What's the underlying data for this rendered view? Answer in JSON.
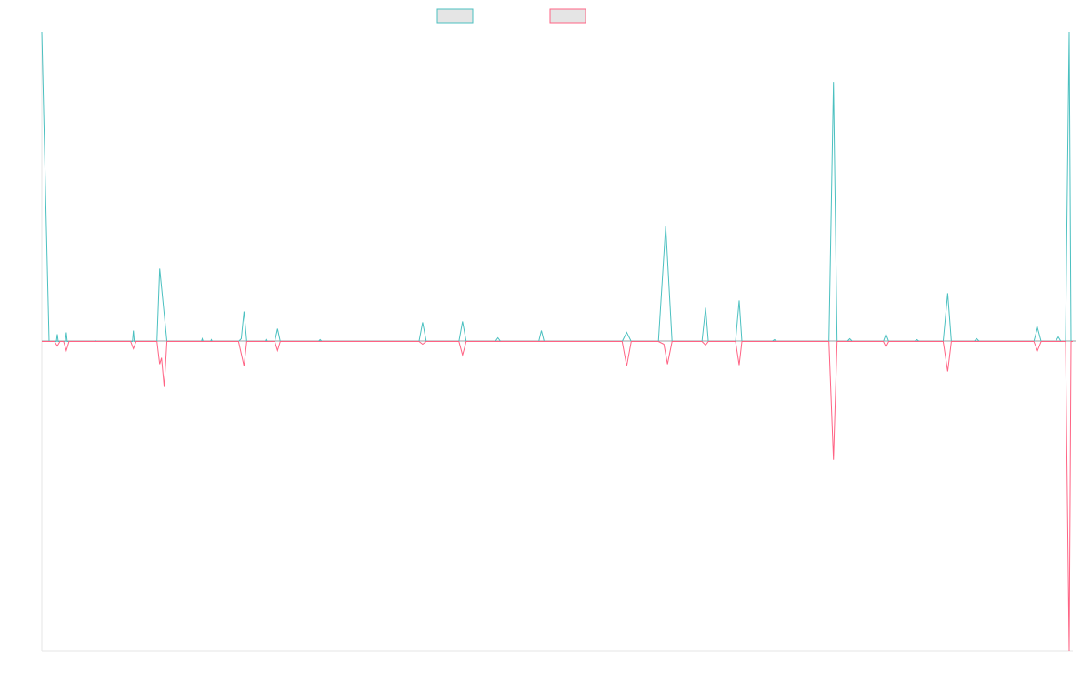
{
  "chart_data": {
    "type": "line",
    "title": "",
    "xlabel": "",
    "ylabel": "",
    "ylim": [
      -340,
      340
    ],
    "grid": false,
    "legend_position": "top-center",
    "series": [
      {
        "name": "",
        "color": "#4bc0c0",
        "fill": "#e5e5e5",
        "points": [
          [
            0,
            340
          ],
          [
            5,
            125
          ],
          [
            8,
            0
          ],
          [
            16,
            0
          ],
          [
            17,
            8
          ],
          [
            18,
            0
          ],
          [
            26,
            0
          ],
          [
            27,
            10
          ],
          [
            28,
            0
          ],
          [
            58,
            0
          ],
          [
            59,
            1
          ],
          [
            60,
            0
          ],
          [
            100,
            0
          ],
          [
            101,
            12
          ],
          [
            102,
            0
          ],
          [
            127,
            0
          ],
          [
            130,
            80
          ],
          [
            138,
            0
          ],
          [
            176,
            0
          ],
          [
            177,
            3
          ],
          [
            178,
            0
          ],
          [
            186,
            0
          ],
          [
            187,
            2
          ],
          [
            188,
            0
          ],
          [
            217,
            0
          ],
          [
            220,
            3
          ],
          [
            223,
            33
          ],
          [
            226,
            0
          ],
          [
            247,
            0
          ],
          [
            248,
            2
          ],
          [
            249,
            0
          ],
          [
            257,
            0
          ],
          [
            260,
            14
          ],
          [
            263,
            0
          ],
          [
            305,
            0
          ],
          [
            307,
            2
          ],
          [
            309,
            0
          ],
          [
            416,
            0
          ],
          [
            420,
            21
          ],
          [
            424,
            0
          ],
          [
            460,
            0
          ],
          [
            464,
            22
          ],
          [
            468,
            0
          ],
          [
            500,
            0
          ],
          [
            503,
            4
          ],
          [
            506,
            0
          ],
          [
            548,
            0
          ],
          [
            551,
            12
          ],
          [
            554,
            0
          ],
          [
            640,
            0
          ],
          [
            645,
            10
          ],
          [
            650,
            0
          ],
          [
            680,
            0
          ],
          [
            688,
            127
          ],
          [
            695,
            0
          ],
          [
            728,
            0
          ],
          [
            732,
            37
          ],
          [
            735,
            0
          ],
          [
            765,
            0
          ],
          [
            769,
            45
          ],
          [
            772,
            0
          ],
          [
            805,
            0
          ],
          [
            808,
            2
          ],
          [
            811,
            0
          ],
          [
            868,
            0
          ],
          [
            873,
            285
          ],
          [
            877,
            0
          ],
          [
            888,
            0
          ],
          [
            891,
            3
          ],
          [
            894,
            0
          ],
          [
            928,
            0
          ],
          [
            931,
            8
          ],
          [
            934,
            0
          ],
          [
            962,
            0
          ],
          [
            965,
            2
          ],
          [
            968,
            0
          ],
          [
            994,
            0
          ],
          [
            999,
            53
          ],
          [
            1003,
            0
          ],
          [
            1028,
            0
          ],
          [
            1031,
            3
          ],
          [
            1034,
            0
          ],
          [
            1094,
            0
          ],
          [
            1098,
            15
          ],
          [
            1102,
            0
          ],
          [
            1118,
            0
          ],
          [
            1121,
            5
          ],
          [
            1124,
            0
          ],
          [
            1129,
            0
          ],
          [
            1133,
            340
          ],
          [
            1135,
            0
          ],
          [
            1137,
            0
          ]
        ]
      },
      {
        "name": "",
        "color": "#ff6384",
        "fill": "#e5e5e5",
        "points": [
          [
            0,
            0
          ],
          [
            8,
            0
          ],
          [
            14,
            0
          ],
          [
            17,
            -5
          ],
          [
            20,
            0
          ],
          [
            24,
            0
          ],
          [
            27,
            -10
          ],
          [
            30,
            0
          ],
          [
            98,
            0
          ],
          [
            101,
            -8
          ],
          [
            104,
            0
          ],
          [
            127,
            0
          ],
          [
            130,
            -25
          ],
          [
            132,
            -18
          ],
          [
            135,
            -50
          ],
          [
            138,
            0
          ],
          [
            217,
            0
          ],
          [
            223,
            -27
          ],
          [
            226,
            0
          ],
          [
            257,
            0
          ],
          [
            260,
            -10
          ],
          [
            263,
            0
          ],
          [
            416,
            0
          ],
          [
            420,
            -3
          ],
          [
            424,
            0
          ],
          [
            460,
            0
          ],
          [
            464,
            -15
          ],
          [
            468,
            0
          ],
          [
            640,
            0
          ],
          [
            645,
            -27
          ],
          [
            650,
            0
          ],
          [
            680,
            0
          ],
          [
            686,
            -3
          ],
          [
            690,
            -25
          ],
          [
            695,
            0
          ],
          [
            728,
            0
          ],
          [
            732,
            -4
          ],
          [
            735,
            0
          ],
          [
            765,
            0
          ],
          [
            769,
            -26
          ],
          [
            772,
            0
          ],
          [
            868,
            0
          ],
          [
            873,
            -130
          ],
          [
            877,
            0
          ],
          [
            928,
            0
          ],
          [
            931,
            -6
          ],
          [
            934,
            0
          ],
          [
            994,
            0
          ],
          [
            999,
            -33
          ],
          [
            1003,
            0
          ],
          [
            1094,
            0
          ],
          [
            1098,
            -10
          ],
          [
            1102,
            0
          ],
          [
            1129,
            0
          ],
          [
            1133,
            -340
          ],
          [
            1135,
            0
          ],
          [
            1137,
            0
          ]
        ]
      }
    ]
  }
}
